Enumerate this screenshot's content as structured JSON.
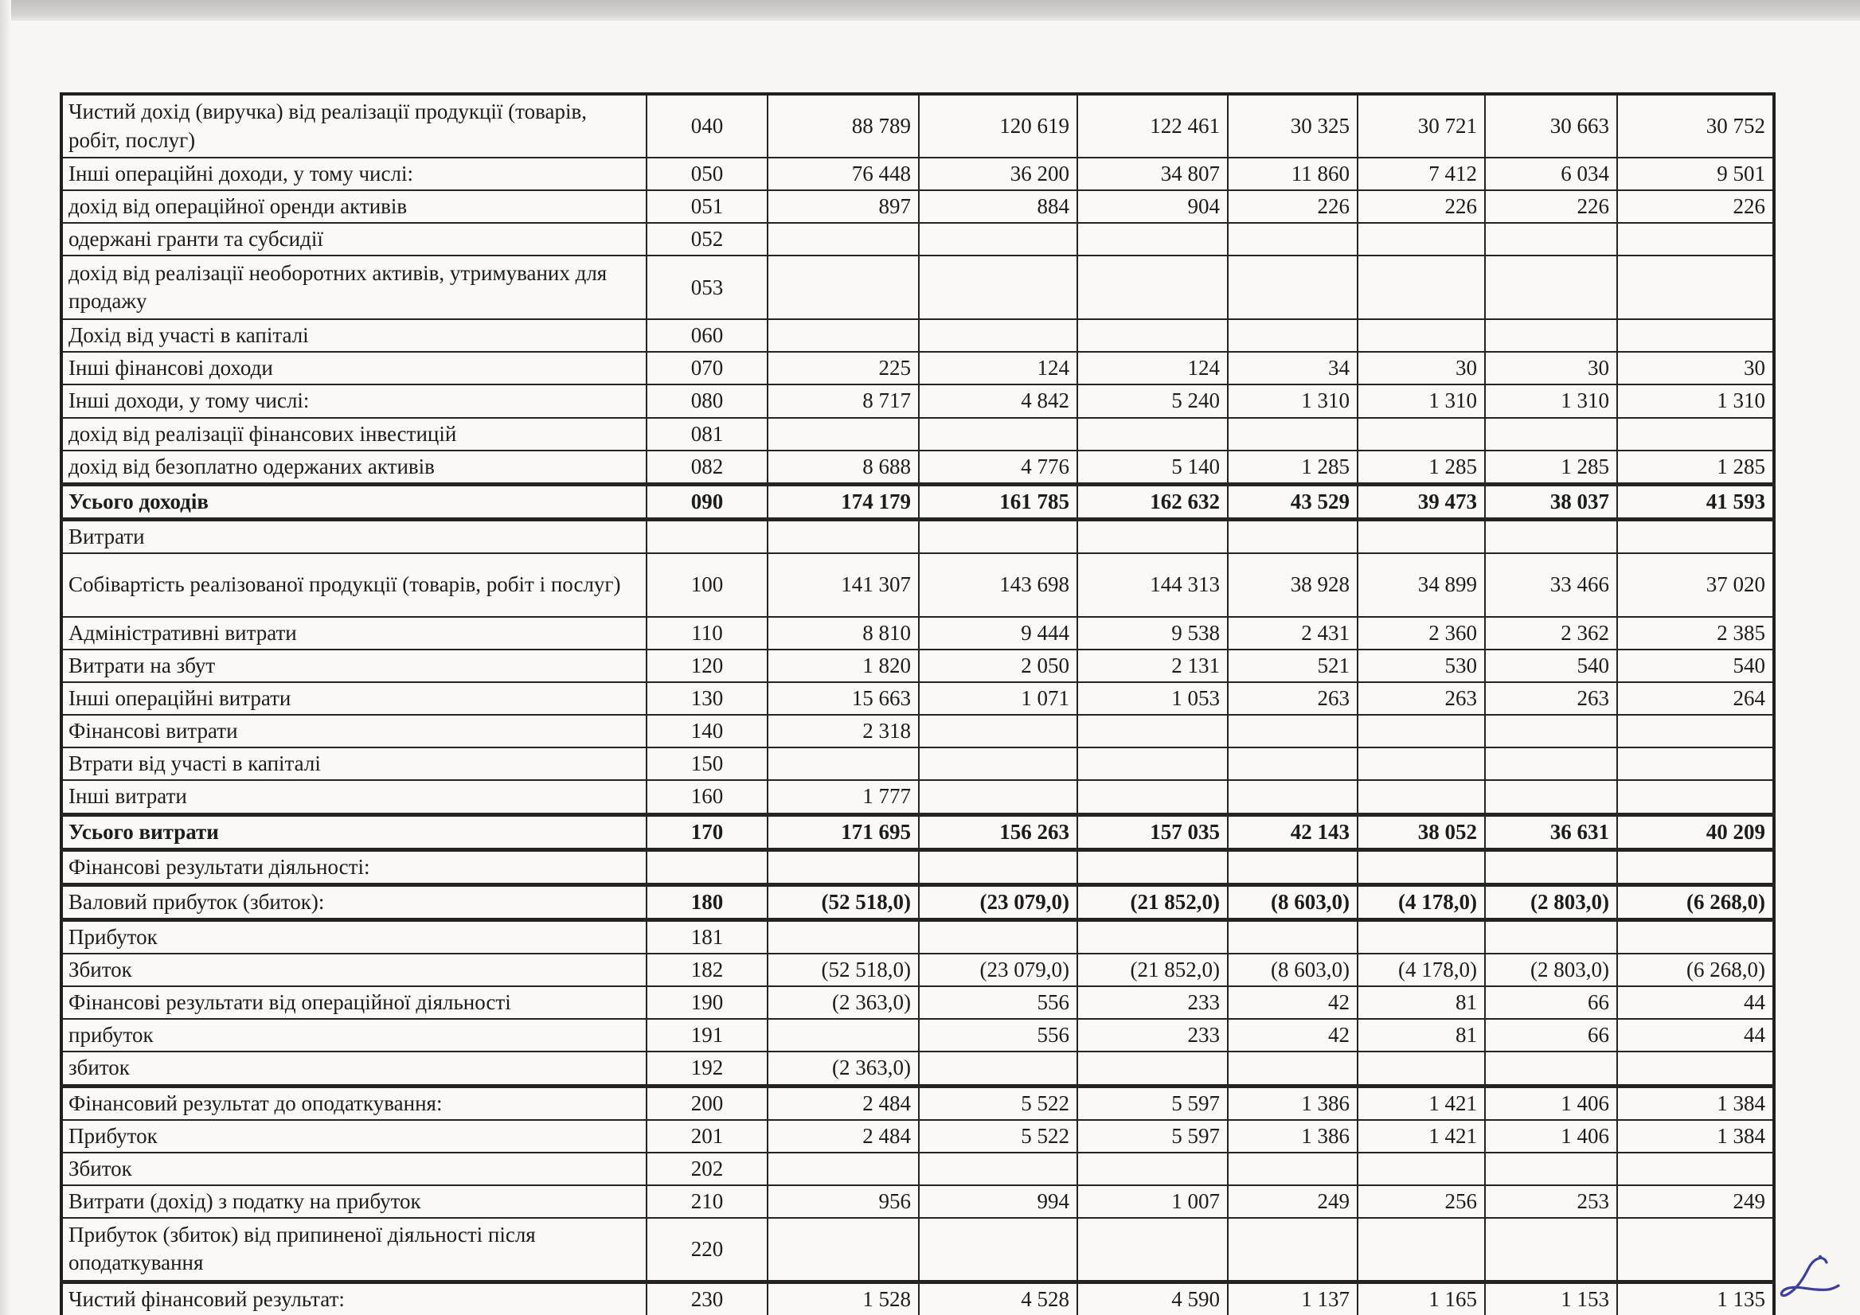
{
  "document": {
    "kind": "scanned financial statement fragment (Ukrainian income statement)",
    "language": "uk"
  },
  "annotations": {
    "handwritten_mark": "cursive blue ink flourish (resembles '2'/'L') at bottom-right",
    "handwriting_color": "#3d3f9f"
  },
  "colors": {
    "paper": "#f8f7f4",
    "ink": "#1c1c1c",
    "table_border": "#242424",
    "scanner_strip": "#c9c8c6"
  },
  "table": {
    "columns": [
      "label",
      "code",
      "value1",
      "value2",
      "value3",
      "value4",
      "value5",
      "value6",
      "value7"
    ],
    "rows": [
      {
        "label": "Чистий дохід (виручка) від реалізації продукції (товарів, робіт, послуг)",
        "code": "040",
        "v": [
          "88 789",
          "120 619",
          "122 461",
          "30 325",
          "30 721",
          "30 663",
          "30 752"
        ],
        "two_line": true
      },
      {
        "label": "Інші операційні доходи, у тому числі:",
        "code": "050",
        "v": [
          "76 448",
          "36 200",
          "34 807",
          "11 860",
          "7 412",
          "6 034",
          "9 501"
        ]
      },
      {
        "label": "дохід від операційної оренди активів",
        "code": "051",
        "v": [
          "897",
          "884",
          "904",
          "226",
          "226",
          "226",
          "226"
        ]
      },
      {
        "label": "одержані гранти та субсидії",
        "code": "052",
        "v": [
          "",
          "",
          "",
          "",
          "",
          "",
          ""
        ]
      },
      {
        "label": "дохід від реалізації необоротних активів, утримуваних для продажу",
        "code": "053",
        "v": [
          "",
          "",
          "",
          "",
          "",
          "",
          ""
        ],
        "two_line": true
      },
      {
        "label": "Дохід від участі в капіталі",
        "code": "060",
        "v": [
          "",
          "",
          "",
          "",
          "",
          "",
          ""
        ]
      },
      {
        "label": "Інші фінансові доходи",
        "code": "070",
        "v": [
          "225",
          "124",
          "124",
          "34",
          "30",
          "30",
          "30"
        ]
      },
      {
        "label": "Інші доходи, у тому числі:",
        "code": "080",
        "v": [
          "8 717",
          "4 842",
          "5 240",
          "1 310",
          "1 310",
          "1 310",
          "1 310"
        ]
      },
      {
        "label": "дохід від реалізації фінансових інвестицій",
        "code": "081",
        "v": [
          "",
          "",
          "",
          "",
          "",
          "",
          ""
        ]
      },
      {
        "label": "дохід від безоплатно одержаних активів",
        "code": "082",
        "v": [
          "8 688",
          "4 776",
          "5 140",
          "1 285",
          "1 285",
          "1 285",
          "1 285"
        ]
      },
      {
        "label": "Усього доходів",
        "code": "090",
        "v": [
          "174 179",
          "161 785",
          "162 632",
          "43 529",
          "39 473",
          "38 037",
          "41 593"
        ],
        "bold_label": true,
        "bold_values": true,
        "heavy_top": true,
        "heavy_bottom": true,
        "emph_row": true
      },
      {
        "label": "Витрати",
        "code": "",
        "v": [
          "",
          "",
          "",
          "",
          "",
          "",
          ""
        ]
      },
      {
        "label": "Собівартість реалізованої продукції (товарів, робіт і послуг)",
        "code": "100",
        "v": [
          "141 307",
          "143 698",
          "144 313",
          "38 928",
          "34 899",
          "33 466",
          "37 020"
        ],
        "two_line": true
      },
      {
        "label": "Адміністративні витрати",
        "code": "110",
        "v": [
          "8 810",
          "9 444",
          "9 538",
          "2 431",
          "2 360",
          "2 362",
          "2 385"
        ]
      },
      {
        "label": "Витрати на збут",
        "code": "120",
        "v": [
          "1 820",
          "2 050",
          "2 131",
          "521",
          "530",
          "540",
          "540"
        ]
      },
      {
        "label": "Інші операційні витрати",
        "code": "130",
        "v": [
          "15 663",
          "1 071",
          "1 053",
          "263",
          "263",
          "263",
          "264"
        ]
      },
      {
        "label": "Фінансові витрати",
        "code": "140",
        "v": [
          "2 318",
          "",
          "",
          "",
          "",
          "",
          ""
        ]
      },
      {
        "label": "Втрати від участі в капіталі",
        "code": "150",
        "v": [
          "",
          "",
          "",
          "",
          "",
          "",
          ""
        ]
      },
      {
        "label": "Інші витрати",
        "code": "160",
        "v": [
          "1 777",
          "",
          "",
          "",
          "",
          "",
          ""
        ]
      },
      {
        "label": "Усього витрати",
        "code": "170",
        "v": [
          "171 695",
          "156 263",
          "157 035",
          "42 143",
          "38 052",
          "36 631",
          "40 209"
        ],
        "bold_label": true,
        "bold_values": true,
        "heavy_top": true,
        "heavy_bottom": true,
        "emph_row": true
      },
      {
        "label": "Фінансові результати діяльності:",
        "code": "",
        "v": [
          "",
          "",
          "",
          "",
          "",
          "",
          ""
        ]
      },
      {
        "label": "Валовий прибуток (збиток):",
        "code": "180",
        "v": [
          "(52 518,0)",
          "(23 079,0)",
          "(21 852,0)",
          "(8 603,0)",
          "(4 178,0)",
          "(2 803,0)",
          "(6 268,0)"
        ],
        "bold_values": true,
        "heavy_top": true,
        "heavy_bottom": true,
        "emph_row": true
      },
      {
        "label": "Прибуток",
        "code": "181",
        "v": [
          "",
          "",
          "",
          "",
          "",
          "",
          ""
        ]
      },
      {
        "label": "Збиток",
        "code": "182",
        "v": [
          "(52 518,0)",
          "(23 079,0)",
          "(21 852,0)",
          "(8 603,0)",
          "(4 178,0)",
          "(2 803,0)",
          "(6 268,0)"
        ]
      },
      {
        "label": "Фінансові результати від операційної діяльності",
        "code": "190",
        "v": [
          "(2 363,0)",
          "556",
          "233",
          "42",
          "81",
          "66",
          "44"
        ]
      },
      {
        "label": "прибуток",
        "code": "191",
        "v": [
          "",
          "556",
          "233",
          "42",
          "81",
          "66",
          "44"
        ]
      },
      {
        "label": "збиток",
        "code": "192",
        "v": [
          "(2 363,0)",
          "",
          "",
          "",
          "",
          "",
          ""
        ],
        "emph_row": true
      },
      {
        "label": "Фінансовий результат до оподаткування:",
        "code": "200",
        "v": [
          "2 484",
          "5 522",
          "5 597",
          "1 386",
          "1 421",
          "1 406",
          "1 384"
        ],
        "heavy_top": true
      },
      {
        "label": "Прибуток",
        "code": "201",
        "v": [
          "2 484",
          "5 522",
          "5 597",
          "1 386",
          "1 421",
          "1 406",
          "1 384"
        ]
      },
      {
        "label": "Збиток",
        "code": "202",
        "v": [
          "",
          "",
          "",
          "",
          "",
          "",
          ""
        ]
      },
      {
        "label": "Витрати (дохід) з податку на прибуток",
        "code": "210",
        "v": [
          "956",
          "994",
          "1 007",
          "249",
          "256",
          "253",
          "249"
        ]
      },
      {
        "label": "Прибуток (збиток) від припиненої діяльності після оподаткування",
        "code": "220",
        "v": [
          "",
          "",
          "",
          "",
          "",
          "",
          ""
        ],
        "two_line": true
      },
      {
        "label": "Чистий фінансовий результат:",
        "code": "230",
        "v": [
          "1 528",
          "4 528",
          "4 590",
          "1 137",
          "1 165",
          "1 153",
          "1 135"
        ],
        "heavy_top": true
      }
    ]
  }
}
